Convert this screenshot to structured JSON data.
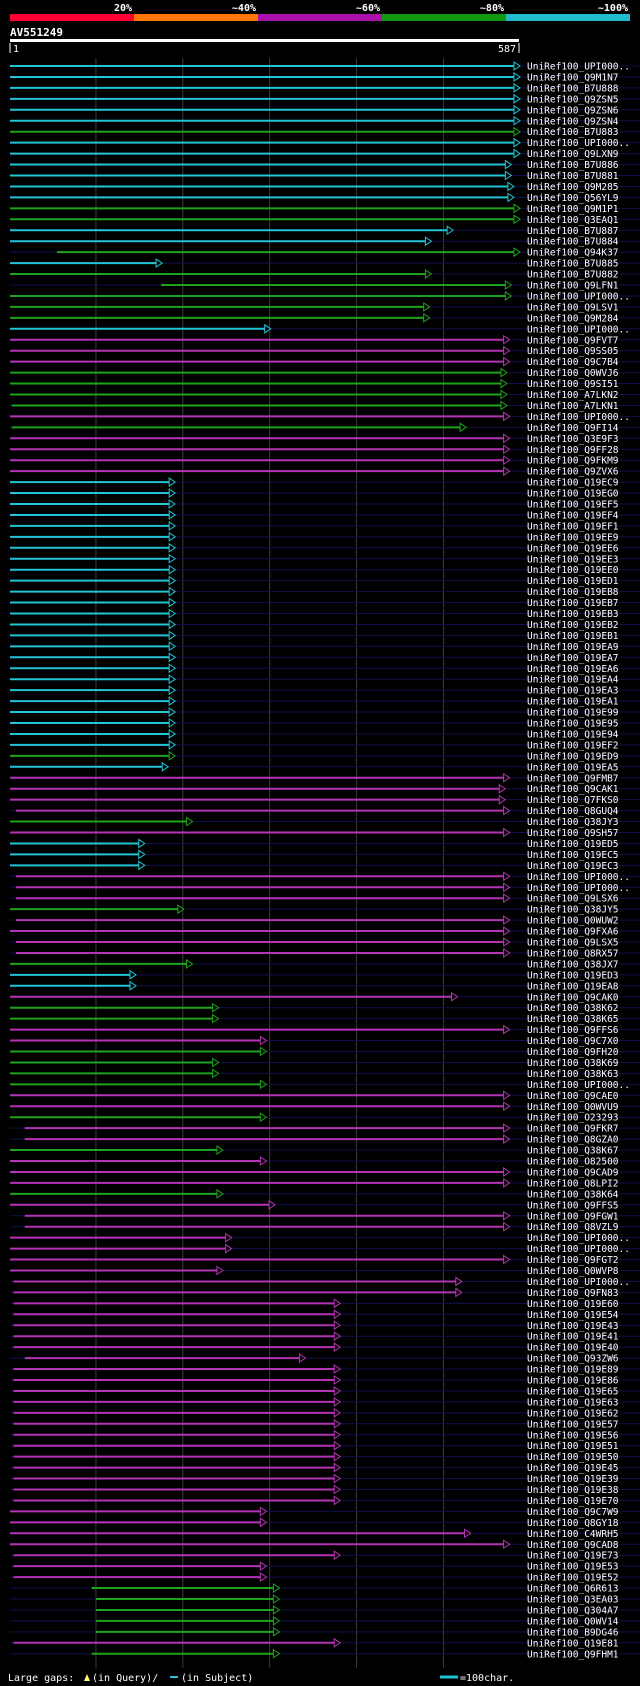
{
  "query": {
    "name": "AV551249",
    "start_label": "1",
    "end_label": "587",
    "length": 587
  },
  "legend": {
    "scale_labels": [
      "20%",
      "~40%",
      "~60%",
      "~80%",
      "~100%"
    ],
    "scale_colors": [
      "#ff0033",
      "#ff7700",
      "#aa11aa",
      "#119911",
      "#22bbcc"
    ],
    "footer_gap_text": "Large gaps:",
    "footer_query_text": "(in Query)/",
    "footer_subject_text": "(in Subject)",
    "footer_scale_text": "=100char."
  },
  "colors": {
    "cyan": "#22c4d6",
    "green": "#1da31d",
    "magenta": "#b533b5"
  },
  "chart_data": {
    "type": "alignment",
    "xlim": [
      1,
      587
    ],
    "hits": [
      {
        "label": "UniRef100_UPI000..",
        "start": 1,
        "end": 587,
        "color": "cyan"
      },
      {
        "label": "UniRef100_Q9M1N7",
        "start": 1,
        "end": 587,
        "color": "cyan"
      },
      {
        "label": "UniRef100_B7U888",
        "start": 1,
        "end": 587,
        "color": "cyan"
      },
      {
        "label": "UniRef100_Q9ZSN5",
        "start": 1,
        "end": 587,
        "color": "cyan"
      },
      {
        "label": "UniRef100_Q9ZSN6",
        "start": 1,
        "end": 587,
        "color": "cyan"
      },
      {
        "label": "UniRef100_Q9ZSN4",
        "start": 1,
        "end": 587,
        "color": "cyan"
      },
      {
        "label": "UniRef100_B7U883",
        "start": 1,
        "end": 587,
        "color": "green"
      },
      {
        "label": "UniRef100_UPI000..",
        "start": 1,
        "end": 587,
        "color": "cyan"
      },
      {
        "label": "UniRef100_Q9LXN9",
        "start": 1,
        "end": 587,
        "color": "cyan"
      },
      {
        "label": "UniRef100_B7U886",
        "start": 1,
        "end": 577,
        "color": "cyan"
      },
      {
        "label": "UniRef100_B7U881",
        "start": 1,
        "end": 577,
        "color": "cyan"
      },
      {
        "label": "UniRef100_Q9M285",
        "start": 1,
        "end": 580,
        "color": "cyan"
      },
      {
        "label": "UniRef100_Q56YL9",
        "start": 1,
        "end": 580,
        "color": "cyan"
      },
      {
        "label": "UniRef100_Q9M1P1",
        "start": 1,
        "end": 587,
        "color": "green"
      },
      {
        "label": "UniRef100_Q3EAQ1",
        "start": 1,
        "end": 587,
        "color": "green"
      },
      {
        "label": "UniRef100_B7U887",
        "start": 1,
        "end": 510,
        "color": "cyan"
      },
      {
        "label": "UniRef100_B7U884",
        "start": 1,
        "end": 485,
        "color": "cyan"
      },
      {
        "label": "UniRef100_Q94K37",
        "start": 55,
        "end": 587,
        "color": "green"
      },
      {
        "label": "UniRef100_B7U885",
        "start": 1,
        "end": 175,
        "color": "cyan"
      },
      {
        "label": "UniRef100_B7U882",
        "start": 1,
        "end": 485,
        "color": "green"
      },
      {
        "label": "UniRef100_Q9LFN1",
        "start": 175,
        "end": 577,
        "color": "green"
      },
      {
        "label": "UniRef100_UPI000..",
        "start": 1,
        "end": 577,
        "color": "green"
      },
      {
        "label": "UniRef100_Q9LSV1",
        "start": 1,
        "end": 483,
        "color": "green"
      },
      {
        "label": "UniRef100_Q9M284",
        "start": 1,
        "end": 483,
        "color": "green"
      },
      {
        "label": "UniRef100_UPI000..",
        "start": 1,
        "end": 300,
        "color": "cyan"
      },
      {
        "label": "UniRef100_Q9FVT7",
        "start": 1,
        "end": 575,
        "color": "magenta"
      },
      {
        "label": "UniRef100_Q9SS05",
        "start": 1,
        "end": 575,
        "color": "magenta"
      },
      {
        "label": "UniRef100_Q9C7B4",
        "start": 1,
        "end": 575,
        "color": "magenta"
      },
      {
        "label": "UniRef100_Q0WVJ6",
        "start": 1,
        "end": 572,
        "color": "green"
      },
      {
        "label": "UniRef100_Q9SI51",
        "start": 1,
        "end": 572,
        "color": "green"
      },
      {
        "label": "UniRef100_A7LKN2",
        "start": 1,
        "end": 572,
        "color": "green"
      },
      {
        "label": "UniRef100_A7LKN1",
        "start": 3,
        "end": 572,
        "color": "green"
      },
      {
        "label": "UniRef100_UPI000..",
        "start": 1,
        "end": 575,
        "color": "magenta"
      },
      {
        "label": "UniRef100_Q9FI14",
        "start": 3,
        "end": 525,
        "color": "green"
      },
      {
        "label": "UniRef100_Q3E9F3",
        "start": 1,
        "end": 575,
        "color": "magenta"
      },
      {
        "label": "UniRef100_Q9FF28",
        "start": 1,
        "end": 575,
        "color": "magenta"
      },
      {
        "label": "UniRef100_Q9FKM9",
        "start": 1,
        "end": 575,
        "color": "magenta"
      },
      {
        "label": "UniRef100_Q9ZVX6",
        "start": 1,
        "end": 575,
        "color": "magenta"
      },
      {
        "label": "UniRef100_Q19EC9",
        "start": 1,
        "end": 190,
        "color": "cyan"
      },
      {
        "label": "UniRef100_Q19EG0",
        "start": 1,
        "end": 190,
        "color": "cyan"
      },
      {
        "label": "UniRef100_Q19EF5",
        "start": 1,
        "end": 190,
        "color": "cyan"
      },
      {
        "label": "UniRef100_Q19EF4",
        "start": 1,
        "end": 190,
        "color": "cyan"
      },
      {
        "label": "UniRef100_Q19EF1",
        "start": 1,
        "end": 190,
        "color": "cyan"
      },
      {
        "label": "UniRef100_Q19EE9",
        "start": 1,
        "end": 190,
        "color": "cyan"
      },
      {
        "label": "UniRef100_Q19EE6",
        "start": 1,
        "end": 190,
        "color": "cyan"
      },
      {
        "label": "UniRef100_Q19EE3",
        "start": 1,
        "end": 190,
        "color": "cyan"
      },
      {
        "label": "UniRef100_Q19EE0",
        "start": 1,
        "end": 190,
        "color": "cyan"
      },
      {
        "label": "UniRef100_Q19ED1",
        "start": 1,
        "end": 190,
        "color": "cyan"
      },
      {
        "label": "UniRef100_Q19EB8",
        "start": 1,
        "end": 190,
        "color": "cyan"
      },
      {
        "label": "UniRef100_Q19EB7",
        "start": 1,
        "end": 190,
        "color": "cyan"
      },
      {
        "label": "UniRef100_Q19EB3",
        "start": 1,
        "end": 190,
        "color": "cyan"
      },
      {
        "label": "UniRef100_Q19EB2",
        "start": 1,
        "end": 190,
        "color": "cyan"
      },
      {
        "label": "UniRef100_Q19EB1",
        "start": 1,
        "end": 190,
        "color": "cyan"
      },
      {
        "label": "UniRef100_Q19EA9",
        "start": 1,
        "end": 190,
        "color": "cyan"
      },
      {
        "label": "UniRef100_Q19EA7",
        "start": 1,
        "end": 190,
        "color": "cyan"
      },
      {
        "label": "UniRef100_Q19EA6",
        "start": 1,
        "end": 190,
        "color": "cyan"
      },
      {
        "label": "UniRef100_Q19EA4",
        "start": 1,
        "end": 190,
        "color": "cyan"
      },
      {
        "label": "UniRef100_Q19EA3",
        "start": 1,
        "end": 190,
        "color": "cyan"
      },
      {
        "label": "UniRef100_Q19EA1",
        "start": 1,
        "end": 190,
        "color": "cyan"
      },
      {
        "label": "UniRef100_Q19E99",
        "start": 1,
        "end": 190,
        "color": "cyan"
      },
      {
        "label": "UniRef100_Q19E95",
        "start": 1,
        "end": 190,
        "color": "cyan"
      },
      {
        "label": "UniRef100_Q19E94",
        "start": 1,
        "end": 190,
        "color": "cyan"
      },
      {
        "label": "UniRef100_Q19EF2",
        "start": 1,
        "end": 190,
        "color": "cyan"
      },
      {
        "label": "UniRef100_Q19ED9",
        "start": 1,
        "end": 190,
        "color": "green"
      },
      {
        "label": "UniRef100_Q19EA5",
        "start": 1,
        "end": 182,
        "color": "cyan"
      },
      {
        "label": "UniRef100_Q9FMB7",
        "start": 1,
        "end": 575,
        "color": "magenta"
      },
      {
        "label": "UniRef100_Q9CAK1",
        "start": 1,
        "end": 570,
        "color": "magenta"
      },
      {
        "label": "UniRef100_Q7FKS0",
        "start": 1,
        "end": 570,
        "color": "magenta"
      },
      {
        "label": "UniRef100_Q8GUQ4",
        "start": 8,
        "end": 575,
        "color": "magenta"
      },
      {
        "label": "UniRef100_Q38JY3",
        "start": 1,
        "end": 210,
        "color": "green"
      },
      {
        "label": "UniRef100_Q9SH57",
        "start": 1,
        "end": 575,
        "color": "magenta"
      },
      {
        "label": "UniRef100_Q19ED5",
        "start": 1,
        "end": 155,
        "color": "cyan"
      },
      {
        "label": "UniRef100_Q19EC5",
        "start": 1,
        "end": 155,
        "color": "cyan"
      },
      {
        "label": "UniRef100_Q19EC3",
        "start": 1,
        "end": 155,
        "color": "cyan"
      },
      {
        "label": "UniRef100_UPI000..",
        "start": 8,
        "end": 575,
        "color": "magenta"
      },
      {
        "label": "UniRef100_UPI000..",
        "start": 8,
        "end": 575,
        "color": "magenta"
      },
      {
        "label": "UniRef100_Q9LSX6",
        "start": 8,
        "end": 575,
        "color": "magenta"
      },
      {
        "label": "UniRef100_Q38JY5",
        "start": 1,
        "end": 200,
        "color": "green"
      },
      {
        "label": "UniRef100_Q0WUW2",
        "start": 8,
        "end": 575,
        "color": "magenta"
      },
      {
        "label": "UniRef100_Q9FXA6",
        "start": 1,
        "end": 575,
        "color": "magenta"
      },
      {
        "label": "UniRef100_Q9LSX5",
        "start": 8,
        "end": 575,
        "color": "magenta"
      },
      {
        "label": "UniRef100_Q8RX57",
        "start": 8,
        "end": 575,
        "color": "magenta"
      },
      {
        "label": "UniRef100_Q38JX7",
        "start": 1,
        "end": 210,
        "color": "green"
      },
      {
        "label": "UniRef100_Q19ED3",
        "start": 1,
        "end": 145,
        "color": "cyan"
      },
      {
        "label": "UniRef100_Q19EA8",
        "start": 1,
        "end": 145,
        "color": "cyan"
      },
      {
        "label": "UniRef100_Q9CAK0",
        "start": 1,
        "end": 515,
        "color": "magenta"
      },
      {
        "label": "UniRef100_Q38K62",
        "start": 1,
        "end": 240,
        "color": "green"
      },
      {
        "label": "UniRef100_Q38K65",
        "start": 1,
        "end": 240,
        "color": "green"
      },
      {
        "label": "UniRef100_Q9FFS6",
        "start": 1,
        "end": 575,
        "color": "magenta"
      },
      {
        "label": "UniRef100_Q9C7X0",
        "start": 1,
        "end": 295,
        "color": "magenta"
      },
      {
        "label": "UniRef100_Q9FH20",
        "start": 1,
        "end": 295,
        "color": "green"
      },
      {
        "label": "UniRef100_Q38K69",
        "start": 1,
        "end": 240,
        "color": "green"
      },
      {
        "label": "UniRef100_Q38K63",
        "start": 1,
        "end": 240,
        "color": "green"
      },
      {
        "label": "UniRef100_UPI000..",
        "start": 1,
        "end": 295,
        "color": "green"
      },
      {
        "label": "UniRef100_Q9CAE0",
        "start": 1,
        "end": 575,
        "color": "magenta"
      },
      {
        "label": "UniRef100_Q0WVU9",
        "start": 1,
        "end": 575,
        "color": "magenta"
      },
      {
        "label": "UniRef100_O23293",
        "start": 1,
        "end": 295,
        "color": "green"
      },
      {
        "label": "UniRef100_Q9FKR7",
        "start": 18,
        "end": 575,
        "color": "magenta"
      },
      {
        "label": "UniRef100_Q8GZA0",
        "start": 18,
        "end": 575,
        "color": "magenta"
      },
      {
        "label": "UniRef100_Q38K67",
        "start": 1,
        "end": 245,
        "color": "green"
      },
      {
        "label": "UniRef100_O82500",
        "start": 1,
        "end": 295,
        "color": "magenta"
      },
      {
        "label": "UniRef100_Q9CAD9",
        "start": 1,
        "end": 575,
        "color": "magenta"
      },
      {
        "label": "UniRef100_Q8LPI2",
        "start": 1,
        "end": 575,
        "color": "magenta"
      },
      {
        "label": "UniRef100_Q38K64",
        "start": 1,
        "end": 245,
        "color": "green"
      },
      {
        "label": "UniRef100_Q9FFS5",
        "start": 1,
        "end": 305,
        "color": "magenta"
      },
      {
        "label": "UniRef100_Q9FGW1",
        "start": 18,
        "end": 575,
        "color": "magenta"
      },
      {
        "label": "UniRef100_Q8VZL9",
        "start": 18,
        "end": 575,
        "color": "magenta"
      },
      {
        "label": "UniRef100_UPI000..",
        "start": 1,
        "end": 255,
        "color": "magenta"
      },
      {
        "label": "UniRef100_UPI000..",
        "start": 1,
        "end": 255,
        "color": "magenta"
      },
      {
        "label": "UniRef100_Q9FGT2",
        "start": 1,
        "end": 575,
        "color": "magenta"
      },
      {
        "label": "UniRef100_Q0WVP8",
        "start": 1,
        "end": 245,
        "color": "magenta"
      },
      {
        "label": "UniRef100_UPI000..",
        "start": 5,
        "end": 520,
        "color": "magenta"
      },
      {
        "label": "UniRef100_Q9FN83",
        "start": 5,
        "end": 520,
        "color": "magenta"
      },
      {
        "label": "UniRef100_Q19E60",
        "start": 5,
        "end": 380,
        "color": "magenta"
      },
      {
        "label": "UniRef100_Q19E54",
        "start": 5,
        "end": 380,
        "color": "magenta"
      },
      {
        "label": "UniRef100_Q19E43",
        "start": 5,
        "end": 380,
        "color": "magenta"
      },
      {
        "label": "UniRef100_Q19E41",
        "start": 5,
        "end": 380,
        "color": "magenta"
      },
      {
        "label": "UniRef100_Q19E40",
        "start": 5,
        "end": 380,
        "color": "magenta"
      },
      {
        "label": "UniRef100_Q93ZW6",
        "start": 18,
        "end": 340,
        "color": "magenta"
      },
      {
        "label": "UniRef100_Q19E89",
        "start": 5,
        "end": 380,
        "color": "magenta"
      },
      {
        "label": "UniRef100_Q19E86",
        "start": 5,
        "end": 380,
        "color": "magenta"
      },
      {
        "label": "UniRef100_Q19E65",
        "start": 5,
        "end": 380,
        "color": "magenta"
      },
      {
        "label": "UniRef100_Q19E63",
        "start": 5,
        "end": 380,
        "color": "magenta"
      },
      {
        "label": "UniRef100_Q19E62",
        "start": 5,
        "end": 380,
        "color": "magenta"
      },
      {
        "label": "UniRef100_Q19E57",
        "start": 5,
        "end": 380,
        "color": "magenta"
      },
      {
        "label": "UniRef100_Q19E56",
        "start": 5,
        "end": 380,
        "color": "magenta"
      },
      {
        "label": "UniRef100_Q19E51",
        "start": 5,
        "end": 380,
        "color": "magenta"
      },
      {
        "label": "UniRef100_Q19E50",
        "start": 5,
        "end": 380,
        "color": "magenta"
      },
      {
        "label": "UniRef100_Q19E45",
        "start": 5,
        "end": 380,
        "color": "magenta"
      },
      {
        "label": "UniRef100_Q19E39",
        "start": 5,
        "end": 380,
        "color": "magenta"
      },
      {
        "label": "UniRef100_Q19E38",
        "start": 5,
        "end": 380,
        "color": "magenta"
      },
      {
        "label": "UniRef100_Q19E70",
        "start": 5,
        "end": 380,
        "color": "magenta"
      },
      {
        "label": "UniRef100_Q9C7W9",
        "start": 1,
        "end": 295,
        "color": "magenta"
      },
      {
        "label": "UniRef100_Q8GY18",
        "start": 1,
        "end": 295,
        "color": "magenta"
      },
      {
        "label": "UniRef100_C4WRH5",
        "start": 1,
        "end": 530,
        "color": "magenta"
      },
      {
        "label": "UniRef100_Q9CAD8",
        "start": 1,
        "end": 575,
        "color": "magenta"
      },
      {
        "label": "UniRef100_Q19E73",
        "start": 5,
        "end": 380,
        "color": "magenta"
      },
      {
        "label": "UniRef100_Q19E53",
        "start": 5,
        "end": 295,
        "color": "magenta"
      },
      {
        "label": "UniRef100_Q19E52",
        "start": 5,
        "end": 295,
        "color": "magenta"
      },
      {
        "label": "UniRef100_Q6R613",
        "start": 95,
        "end": 310,
        "color": "green"
      },
      {
        "label": "UniRef100_Q3EA03",
        "start": 100,
        "end": 310,
        "color": "green"
      },
      {
        "label": "UniRef100_Q304A7",
        "start": 100,
        "end": 310,
        "color": "green"
      },
      {
        "label": "UniRef100_Q0WV14",
        "start": 100,
        "end": 310,
        "color": "green"
      },
      {
        "label": "UniRef100_B9DG46",
        "start": 100,
        "end": 310,
        "color": "green"
      },
      {
        "label": "UniRef100_Q19E81",
        "start": 5,
        "end": 380,
        "color": "magenta"
      },
      {
        "label": "UniRef100_Q9FHM1",
        "start": 95,
        "end": 310,
        "color": "green"
      }
    ]
  }
}
